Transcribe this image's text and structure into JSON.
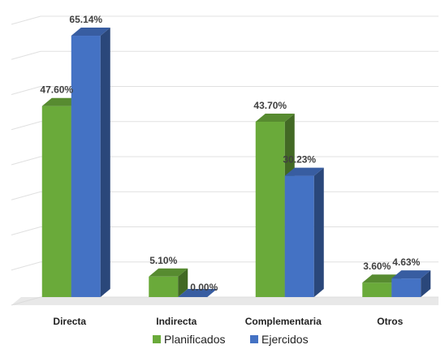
{
  "chart_data": {
    "type": "bar",
    "categories": [
      "Directa",
      "Indirecta",
      "Complementaria",
      "Otros"
    ],
    "series": [
      {
        "name": "Planificados",
        "values": [
          47.6,
          5.1,
          43.7,
          3.6
        ],
        "labels": [
          "47.60%",
          "5.10%",
          "43.70%",
          "3.60%"
        ],
        "color": "#6aaa3a"
      },
      {
        "name": "Ejercidos",
        "values": [
          65.14,
          0.0,
          30.23,
          4.63
        ],
        "labels": [
          "65.14%",
          "0.00%",
          "30.23%",
          "4.63%"
        ],
        "color": "#4472c4"
      }
    ],
    "ylim": [
      0,
      70
    ],
    "grid": true,
    "legend": "bottom",
    "style": "3d-clustered-column"
  }
}
